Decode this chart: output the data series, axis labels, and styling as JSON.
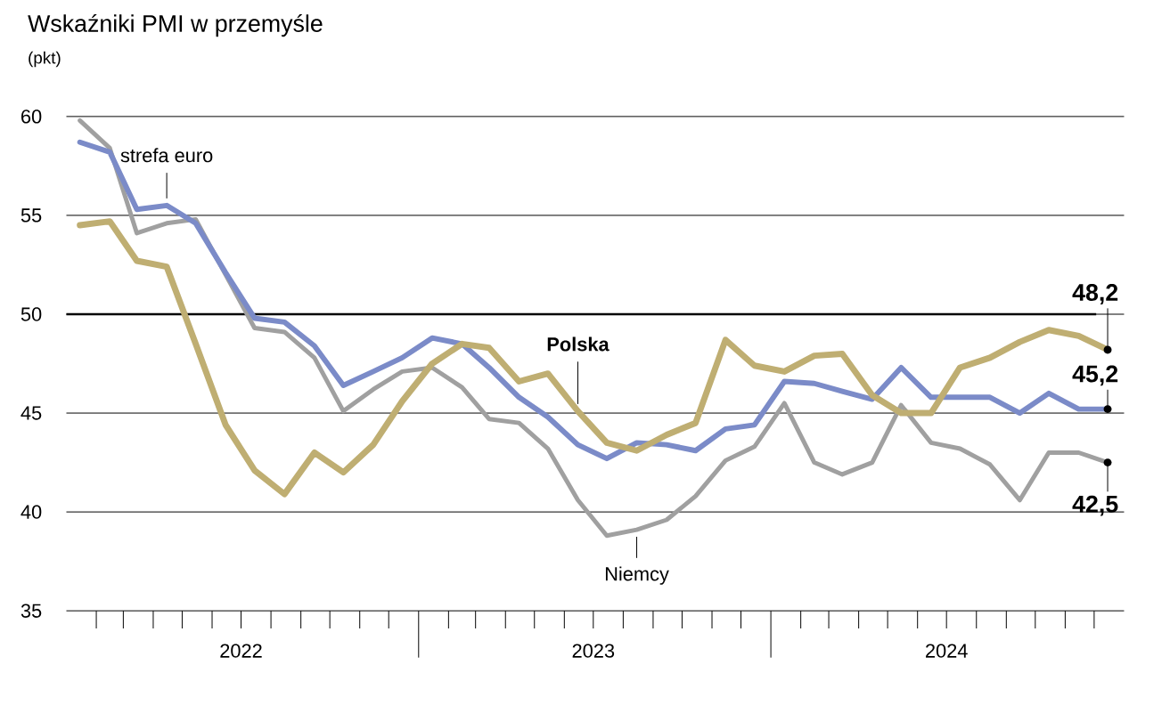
{
  "chart_data": {
    "type": "line",
    "title": "Wskaźniki PMI w przemyśle",
    "subtitle": "(pkt)",
    "x": [
      "2022-01-15",
      "2022-02-15",
      "2022-03-15",
      "2022-04-15",
      "2022-05-15",
      "2022-06-15",
      "2022-07-15",
      "2022-08-15",
      "2022-09-15",
      "2022-10-15",
      "2022-11-15",
      "2022-12-15",
      "2023-01-15",
      "2023-02-15",
      "2023-03-15",
      "2023-04-15",
      "2023-05-15",
      "2023-06-15",
      "2023-07-15",
      "2023-08-15",
      "2023-09-15",
      "2023-10-15",
      "2023-11-15",
      "2023-12-15",
      "2024-01-15",
      "2024-02-15",
      "2024-03-15",
      "2024-04-15",
      "2024-05-15",
      "2024-06-15",
      "2024-07-15",
      "2024-08-15",
      "2024-09-15",
      "2024-10-15",
      "2024-11-15",
      "2024-12-15"
    ],
    "series": [
      {
        "name": "Polska",
        "color": "#bfae72",
        "values": [
          54.5,
          54.7,
          52.7,
          52.4,
          48.5,
          44.4,
          42.1,
          40.9,
          43.0,
          42.0,
          43.4,
          45.6,
          47.5,
          48.5,
          48.3,
          46.6,
          47.0,
          45.1,
          43.5,
          43.1,
          43.9,
          44.5,
          48.7,
          47.4,
          47.1,
          47.9,
          48.0,
          45.9,
          45.0,
          45.0,
          47.3,
          47.8,
          48.6,
          49.2,
          48.9,
          48.2
        ],
        "value_labels": [
          null,
          null,
          null,
          null,
          null,
          null,
          null,
          null,
          null,
          null,
          null,
          null,
          null,
          null,
          null,
          null,
          null,
          null,
          null,
          null,
          null,
          null,
          null,
          null,
          null,
          null,
          null,
          null,
          null,
          null,
          null,
          null,
          null,
          null,
          null,
          "48,2"
        ]
      },
      {
        "name": "strefa euro",
        "color": "#7b8bc8",
        "values": [
          58.7,
          58.2,
          55.3,
          55.5,
          54.6,
          52.1,
          49.8,
          49.6,
          48.4,
          46.4,
          47.1,
          47.8,
          48.8,
          48.5,
          47.3,
          45.8,
          44.8,
          43.4,
          42.7,
          43.5,
          43.4,
          43.1,
          44.2,
          44.4,
          46.6,
          46.5,
          46.1,
          45.7,
          47.3,
          45.8,
          45.8,
          45.8,
          45.0,
          46.0,
          45.2,
          45.2
        ],
        "value_labels": [
          null,
          null,
          null,
          null,
          null,
          null,
          null,
          null,
          null,
          null,
          null,
          null,
          null,
          null,
          null,
          null,
          null,
          null,
          null,
          null,
          null,
          null,
          null,
          null,
          null,
          null,
          null,
          null,
          null,
          null,
          null,
          null,
          null,
          null,
          null,
          "45,2"
        ]
      },
      {
        "name": "Niemcy",
        "color": "#a0a0a0",
        "values": [
          59.8,
          58.4,
          54.1,
          54.6,
          54.8,
          52.0,
          49.3,
          49.1,
          47.8,
          45.1,
          46.2,
          47.1,
          47.3,
          46.3,
          44.7,
          44.5,
          43.2,
          40.6,
          38.8,
          39.1,
          39.6,
          40.8,
          42.6,
          43.3,
          45.5,
          42.5,
          41.9,
          42.5,
          45.4,
          43.5,
          43.2,
          42.4,
          40.6,
          43.0,
          43.0,
          42.5
        ],
        "value_labels": [
          null,
          null,
          null,
          null,
          null,
          null,
          null,
          null,
          null,
          null,
          null,
          null,
          null,
          null,
          null,
          null,
          null,
          null,
          null,
          null,
          null,
          null,
          null,
          null,
          null,
          null,
          null,
          null,
          null,
          null,
          null,
          null,
          null,
          null,
          null,
          "42,5"
        ]
      }
    ],
    "xlim": [
      "2022-01-01",
      "2025-01-01"
    ],
    "xticks": [
      {
        "value": "2022-07-01",
        "label": "2022"
      },
      {
        "value": "2023-07-01",
        "label": "2023"
      },
      {
        "value": "2024-07-01",
        "label": "2024"
      }
    ],
    "ylim": [
      35,
      60
    ],
    "yticks": [
      35,
      40,
      45,
      50,
      55,
      60
    ],
    "grid": "y",
    "line_style": "solid",
    "ref_lines": [
      {
        "axis": "y",
        "value": 50,
        "color": "#000000"
      }
    ]
  }
}
